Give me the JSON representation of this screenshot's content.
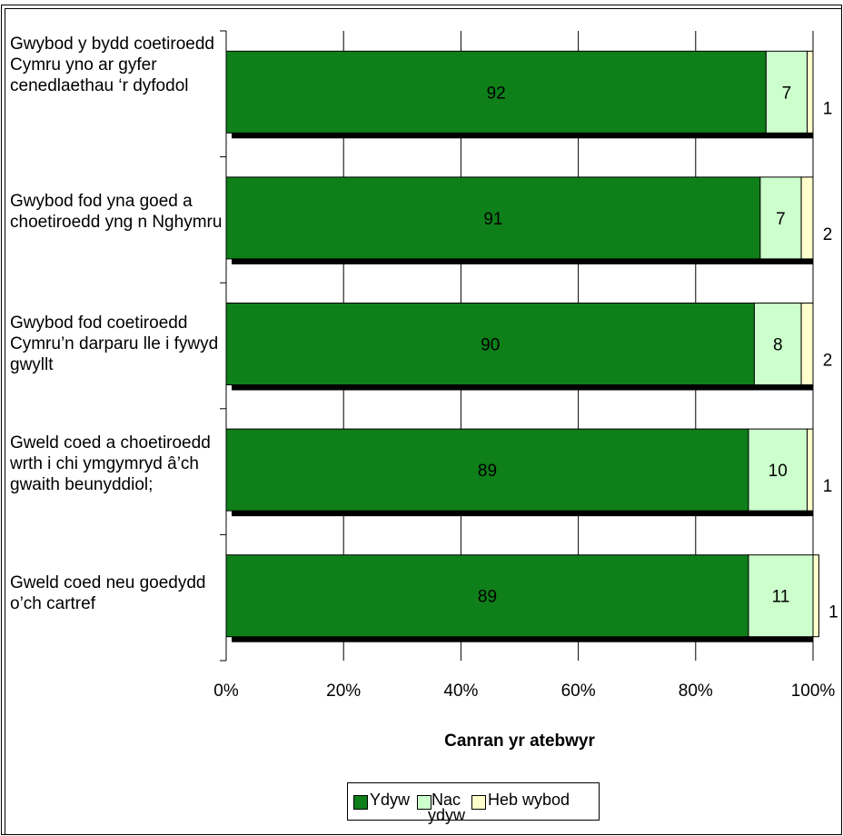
{
  "chart_data": {
    "type": "bar",
    "orientation": "horizontal",
    "stacked": "percent",
    "categories": [
      "Gwybod y bydd coetiroedd Cymru yno ar gyfer cenedlaethau ‘r dyfodol",
      "Gwybod fod yna goed a choetiroedd yng n Nghymru",
      "Gwybod fod coetiroedd Cymru’n darparu lle i fywyd gwyllt",
      "Gweld coed a choetiroedd wrth i chi ymgymryd â’ch gwaith beunyddiol;",
      "Gweld coed neu goedydd o’ch cartref"
    ],
    "series": [
      {
        "name": "Ydyw",
        "color": "#0f7f1a",
        "values": [
          92,
          91,
          90,
          89,
          89
        ]
      },
      {
        "name": "Nac ydyw",
        "color": "#ccffcc",
        "values": [
          7,
          7,
          8,
          10,
          11
        ]
      },
      {
        "name": "Heb wybod",
        "color": "#ffffcc",
        "values": [
          1,
          2,
          2,
          1,
          1
        ]
      }
    ],
    "xlabel": "Canran yr atebwyr",
    "xticks": [
      "0%",
      "20%",
      "40%",
      "60%",
      "80%",
      "100%"
    ],
    "xlim": [
      0,
      100
    ],
    "grid": true,
    "legend_position": "bottom",
    "legend_labels": {
      "s1": "Ydyw",
      "s2_line1": "Nac",
      "s2_line2": "ydyw",
      "s3": "Heb wybod"
    }
  }
}
